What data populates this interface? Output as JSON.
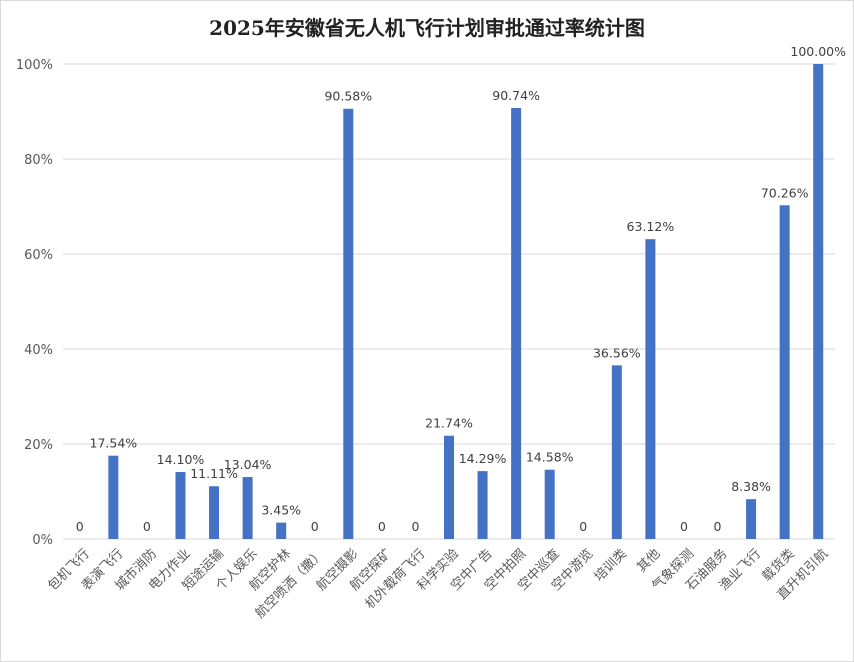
{
  "chart_data": {
    "type": "bar",
    "title": "2025年安徽省无人机飞行计划审批通过率统计图",
    "categories": [
      "包机飞行",
      "表演飞行",
      "城市消防",
      "电力作业",
      "短途运输",
      "个人娱乐",
      "航空护林",
      "航空喷洒（撒）",
      "航空摄影",
      "航空探矿",
      "机外载荷飞行",
      "科学实验",
      "空中广告",
      "空中拍照",
      "空中巡查",
      "空中游览",
      "培训类",
      "其他",
      "气象探测",
      "石油服务",
      "渔业飞行",
      "载货类",
      "直升机引航"
    ],
    "values": [
      0,
      17.54,
      0,
      14.1,
      11.11,
      13.04,
      3.45,
      0,
      90.58,
      0,
      0,
      21.74,
      14.29,
      90.74,
      14.58,
      0,
      36.56,
      63.12,
      0,
      0,
      8.38,
      70.26,
      100.0
    ],
    "labels": [
      "0",
      "17.54%",
      "0",
      "14.10%",
      "11.11%",
      "13.04%",
      "3.45%",
      "0",
      "90.58%",
      "0",
      "0",
      "21.74%",
      "14.29%",
      "90.74%",
      "14.58%",
      "0",
      "36.56%",
      "63.12%",
      "0",
      "0",
      "8.38%",
      "70.26%",
      "100.00%"
    ],
    "ylim": [
      0,
      100
    ],
    "yticks": [
      0,
      20,
      40,
      60,
      80,
      100
    ],
    "ytick_labels": [
      "0%",
      "20%",
      "40%",
      "60%",
      "80%",
      "100%"
    ],
    "grid": true,
    "legend": "none",
    "bar_color": "#4472c4"
  }
}
